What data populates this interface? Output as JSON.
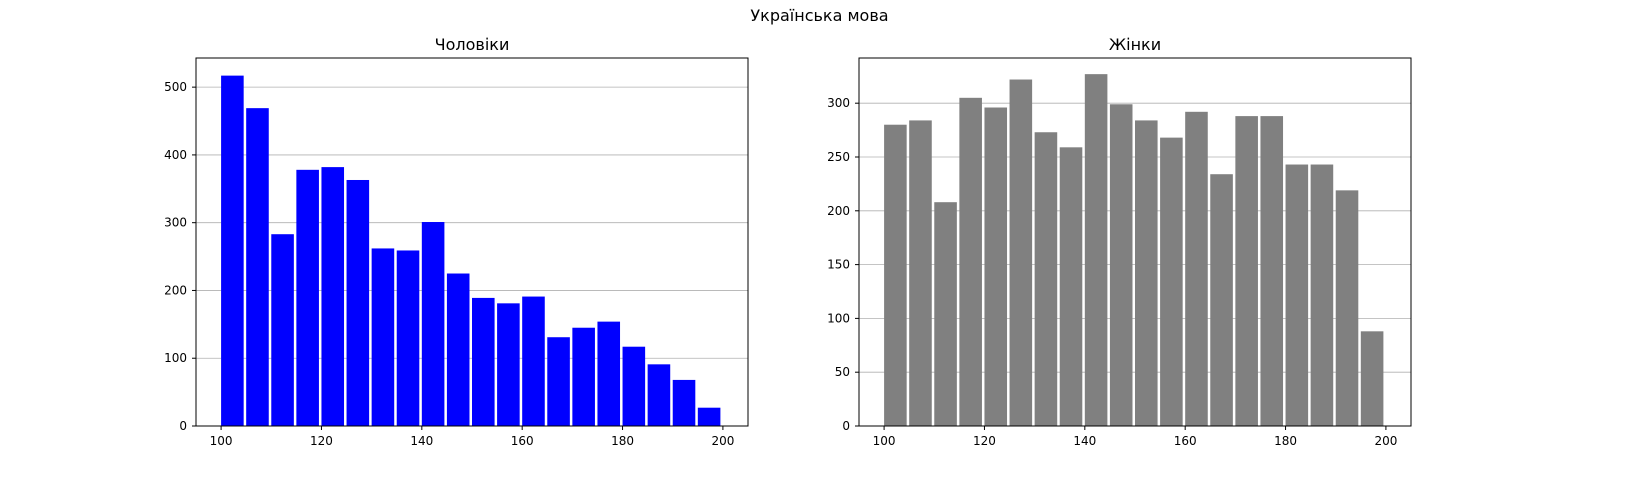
{
  "figure_title": "Українська мова",
  "chart_data": [
    {
      "type": "bar",
      "title": "Чоловіки",
      "xlabel": "",
      "ylabel": "",
      "color": "#0000ff",
      "bin_start": 100,
      "bin_width": 5,
      "values": [
        517,
        469,
        283,
        378,
        382,
        363,
        262,
        259,
        301,
        225,
        189,
        181,
        191,
        131,
        145,
        154,
        117,
        91,
        68,
        27
      ],
      "xlim": [
        95,
        205
      ],
      "ylim": [
        0,
        543
      ],
      "xticks": [
        100,
        120,
        140,
        160,
        180,
        200
      ],
      "yticks": [
        0,
        100,
        200,
        300,
        400,
        500
      ],
      "grid": "y"
    },
    {
      "type": "bar",
      "title": "Жінки",
      "xlabel": "",
      "ylabel": "",
      "color": "#808080",
      "bin_start": 100,
      "bin_width": 5,
      "values": [
        280,
        284,
        208,
        305,
        296,
        322,
        273,
        259,
        327,
        299,
        284,
        268,
        292,
        234,
        288,
        288,
        243,
        243,
        219,
        88
      ],
      "xlim": [
        95,
        205
      ],
      "ylim": [
        0,
        342
      ],
      "xticks": [
        100,
        120,
        140,
        160,
        180,
        200
      ],
      "yticks": [
        0,
        50,
        100,
        150,
        200,
        250,
        300
      ],
      "grid": "y"
    }
  ]
}
